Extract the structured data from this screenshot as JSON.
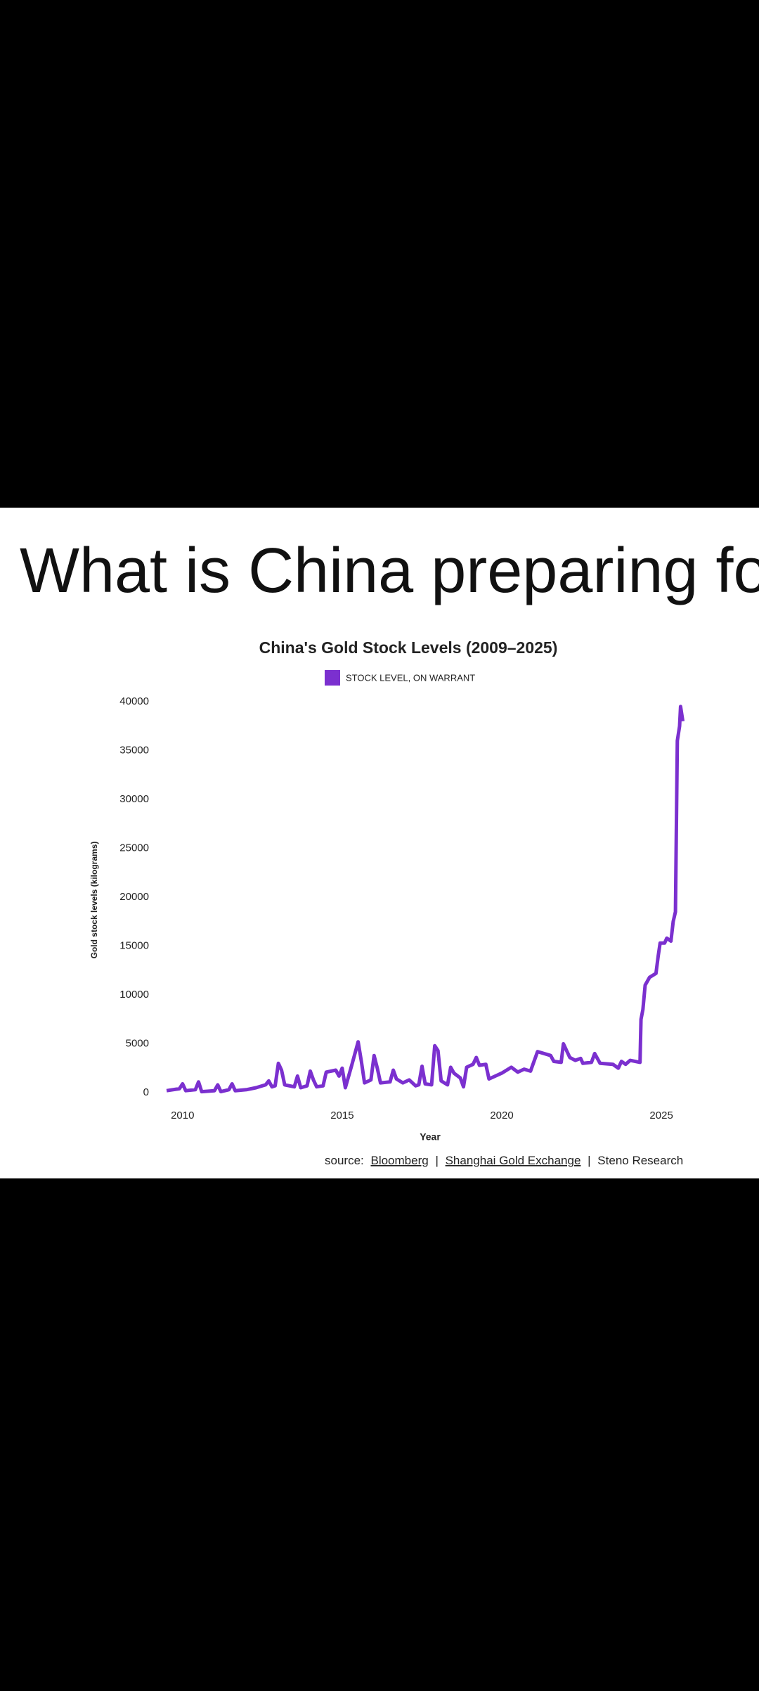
{
  "header": {
    "title": "What is China preparing for?"
  },
  "chart_data": {
    "type": "line",
    "title": "China's Gold Stock Levels (2009–2025)",
    "x_label": "Year",
    "y_label": "Gold stock levels (kilograms)",
    "x": [
      2009.5,
      2009.9,
      2010.0,
      2010.1,
      2010.4,
      2010.5,
      2010.6,
      2011.0,
      2011.1,
      2011.2,
      2011.45,
      2011.55,
      2011.65,
      2012.0,
      2012.3,
      2012.6,
      2012.7,
      2012.8,
      2012.9,
      2013.0,
      2013.1,
      2013.2,
      2013.5,
      2013.6,
      2013.7,
      2013.9,
      2014.0,
      2014.1,
      2014.2,
      2014.4,
      2014.5,
      2014.8,
      2014.9,
      2015.0,
      2015.1,
      2015.3,
      2015.5,
      2015.6,
      2015.7,
      2015.9,
      2016.0,
      2016.1,
      2016.2,
      2016.5,
      2016.6,
      2016.7,
      2016.9,
      2017.1,
      2017.3,
      2017.4,
      2017.5,
      2017.6,
      2017.8,
      2017.9,
      2018.0,
      2018.1,
      2018.3,
      2018.4,
      2018.5,
      2018.7,
      2018.8,
      2018.9,
      2019.1,
      2019.2,
      2019.3,
      2019.5,
      2019.6,
      2019.8,
      2020.0,
      2020.3,
      2020.5,
      2020.7,
      2020.9,
      2021.12,
      2021.53,
      2021.63,
      2021.86,
      2021.93,
      2022.13,
      2022.3,
      2022.47,
      2022.54,
      2022.81,
      2022.91,
      2023.08,
      2023.48,
      2023.65,
      2023.75,
      2023.88,
      2024.02,
      2024.33,
      2024.36,
      2024.42,
      2024.49,
      2024.63,
      2024.83,
      2024.9,
      2024.96,
      2025.1,
      2025.17,
      2025.3,
      2025.37,
      2025.44,
      2025.5,
      2025.57,
      2025.6,
      2025.67
    ],
    "series": [
      {
        "name": "STOCK LEVEL, ON WARRANT",
        "color": "#7b30cf",
        "values": [
          200,
          400,
          900,
          200,
          300,
          1100,
          100,
          200,
          800,
          100,
          300,
          900,
          200,
          300,
          500,
          800,
          1200,
          600,
          700,
          3000,
          2300,
          800,
          600,
          1700,
          500,
          700,
          2200,
          1300,
          600,
          700,
          2100,
          2300,
          1700,
          2500,
          500,
          2800,
          5200,
          3200,
          1000,
          1300,
          3800,
          2500,
          1000,
          1100,
          2300,
          1400,
          1000,
          1300,
          700,
          800,
          2700,
          900,
          800,
          4800,
          4300,
          1200,
          800,
          2600,
          2000,
          1500,
          600,
          2600,
          2900,
          3600,
          2800,
          2900,
          1400,
          1700,
          2000,
          2600,
          2100,
          2400,
          2200,
          4200,
          3800,
          3200,
          3100,
          5000,
          3600,
          3300,
          3500,
          3000,
          3100,
          4000,
          3000,
          2900,
          2500,
          3200,
          2900,
          3300,
          3100,
          7500,
          8500,
          11000,
          11800,
          12200,
          14000,
          15300,
          15300,
          15800,
          15500,
          17500,
          18500,
          36000,
          37500,
          39500,
          38000
        ]
      }
    ],
    "xlim": [
      2009.3,
      2025.9
    ],
    "xticks": [
      2010,
      2015,
      2020,
      2025
    ],
    "ylim": [
      0,
      41000
    ],
    "yticks": [
      0,
      5000,
      10000,
      15000,
      20000,
      25000,
      30000,
      35000,
      40000
    ],
    "source": {
      "prefix": "source:",
      "links": [
        "Bloomberg",
        "Shanghai Gold Exchange"
      ],
      "separator": "|",
      "last": "Steno Research"
    }
  }
}
